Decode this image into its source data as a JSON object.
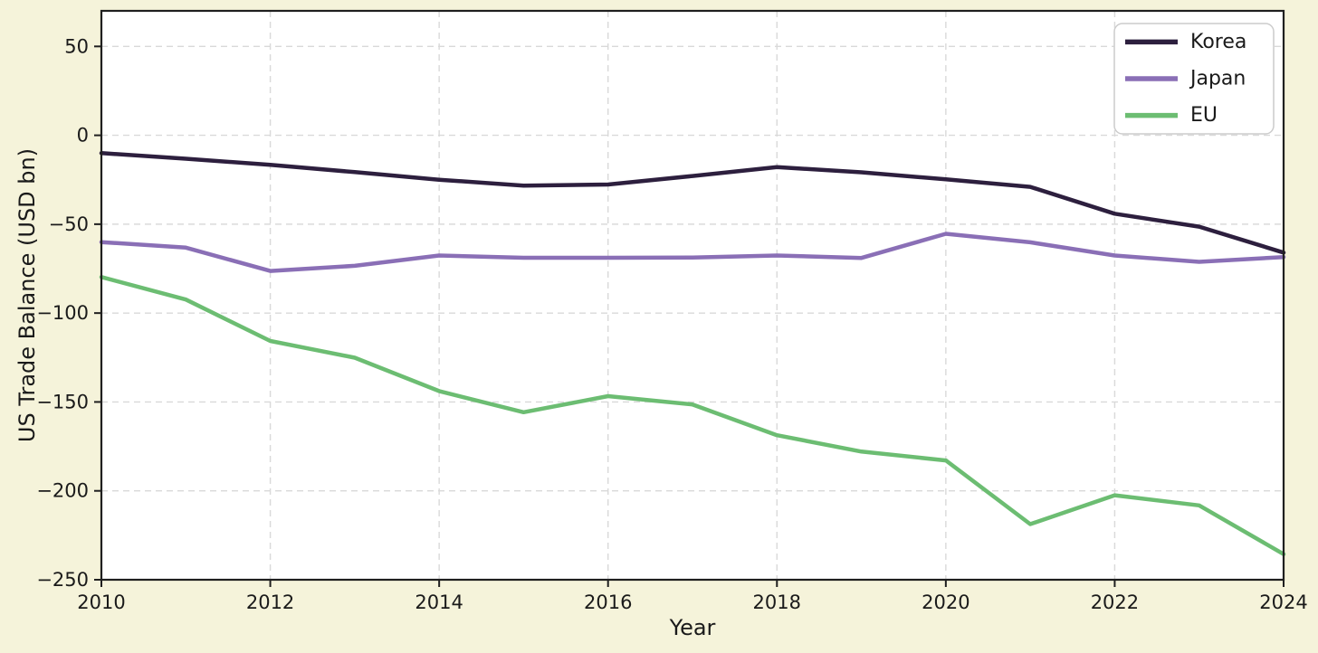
{
  "chart_data": {
    "type": "line",
    "title": "",
    "xlabel": "Year",
    "ylabel": "US Trade Balance (USD bn)",
    "x": [
      2010,
      2011,
      2012,
      2013,
      2014,
      2015,
      2016,
      2017,
      2018,
      2019,
      2020,
      2021,
      2022,
      2023,
      2024
    ],
    "series": [
      {
        "name": "Korea",
        "color": "#2d1f3e",
        "values": [
          -10.0,
          -13.2,
          -16.6,
          -20.7,
          -25.0,
          -28.3,
          -27.7,
          -22.9,
          -17.9,
          -20.8,
          -24.8,
          -29.0,
          -44.1,
          -51.4,
          -66.0
        ]
      },
      {
        "name": "Japan",
        "color": "#8a6fb6",
        "values": [
          -60.1,
          -63.2,
          -76.3,
          -73.4,
          -67.6,
          -68.9,
          -68.9,
          -68.8,
          -67.6,
          -69.0,
          -55.4,
          -60.2,
          -67.6,
          -71.2,
          -68.5
        ]
      },
      {
        "name": "EU",
        "color": "#6cbd72",
        "values": [
          -79.7,
          -92.4,
          -115.7,
          -125.1,
          -143.9,
          -155.8,
          -146.7,
          -151.4,
          -168.7,
          -177.9,
          -182.9,
          -218.7,
          -202.5,
          -208.2,
          -235.6
        ]
      }
    ],
    "xlim": [
      2010,
      2024
    ],
    "ylim": [
      -250,
      70
    ],
    "xticks": [
      2010,
      2012,
      2014,
      2016,
      2018,
      2020,
      2022,
      2024
    ],
    "yticks": [
      50,
      0,
      -50,
      -100,
      -150,
      -200,
      -250
    ],
    "grid": true,
    "grid_style": "dashed",
    "legend_position": "upper right",
    "legend_entries": [
      "Korea",
      "Japan",
      "EU"
    ]
  },
  "colors": {
    "figure_background": "#f5f3da",
    "plot_background": "#ffffff",
    "gridline": "#d9d9d9",
    "spine": "#1f1f1f",
    "tick": "#1f1f1f",
    "text": "#1a1a1a",
    "legend_background": "#ffffff",
    "legend_border": "#cccccc"
  }
}
